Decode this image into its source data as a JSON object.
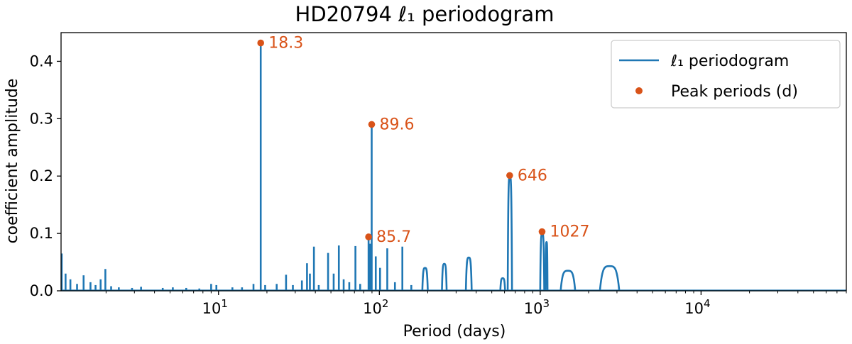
{
  "chart_data": {
    "type": "line",
    "title": "HD20794  ℓ₁ periodogram",
    "xlabel": "Period (days)",
    "ylabel": "coefficient amplitude",
    "xscale": "log",
    "xlim": [
      1.05,
      80000
    ],
    "ylim": [
      0,
      0.45
    ],
    "grid": false,
    "legend_placement": "top-right",
    "y_ticks": [
      {
        "value": 0.0,
        "label": "0.0"
      },
      {
        "value": 0.1,
        "label": "0.1"
      },
      {
        "value": 0.2,
        "label": "0.2"
      },
      {
        "value": 0.3,
        "label": "0.3"
      },
      {
        "value": 0.4,
        "label": "0.4"
      }
    ],
    "x_ticks": [
      {
        "value": 10,
        "base": "10",
        "exp": "1"
      },
      {
        "value": 100,
        "base": "10",
        "exp": "2"
      },
      {
        "value": 1000,
        "base": "10",
        "exp": "3"
      },
      {
        "value": 10000,
        "base": "10",
        "exp": "4"
      }
    ],
    "series": [
      {
        "name": "ℓ₁ periodogram",
        "color": "#1f77b4",
        "spikes": [
          [
            1.06,
            0.065
          ],
          [
            1.12,
            0.03
          ],
          [
            1.2,
            0.02
          ],
          [
            1.32,
            0.012
          ],
          [
            1.45,
            0.027
          ],
          [
            1.6,
            0.015
          ],
          [
            1.72,
            0.01
          ],
          [
            1.85,
            0.02
          ],
          [
            1.98,
            0.038
          ],
          [
            2.15,
            0.008
          ],
          [
            2.4,
            0.006
          ],
          [
            2.9,
            0.005
          ],
          [
            3.3,
            0.007
          ],
          [
            4.5,
            0.005
          ],
          [
            5.2,
            0.006
          ],
          [
            6.3,
            0.005
          ],
          [
            7.6,
            0.004
          ],
          [
            9.0,
            0.012
          ],
          [
            9.7,
            0.01
          ],
          [
            12.2,
            0.006
          ],
          [
            14.0,
            0.006
          ],
          [
            16.5,
            0.012
          ],
          [
            18.3,
            0.432
          ],
          [
            19.5,
            0.01
          ],
          [
            23.0,
            0.012
          ],
          [
            26.3,
            0.028
          ],
          [
            29.0,
            0.01
          ],
          [
            33.0,
            0.018
          ],
          [
            35.5,
            0.048
          ],
          [
            37.0,
            0.03
          ],
          [
            39.2,
            0.077
          ],
          [
            42.0,
            0.01
          ],
          [
            48.0,
            0.066
          ],
          [
            52.0,
            0.03
          ],
          [
            56.0,
            0.079
          ],
          [
            60.0,
            0.02
          ],
          [
            65.0,
            0.015
          ],
          [
            71.0,
            0.078
          ],
          [
            76.0,
            0.012
          ],
          [
            85.7,
            0.094
          ],
          [
            87.5,
            0.082
          ],
          [
            89.6,
            0.29
          ],
          [
            95.0,
            0.06
          ],
          [
            101.0,
            0.04
          ],
          [
            112.0,
            0.074
          ],
          [
            125.0,
            0.015
          ],
          [
            139.0,
            0.077
          ],
          [
            158.0,
            0.01
          ]
        ],
        "humps": [
          [
            185,
            200,
            0.04
          ],
          [
            245,
            262,
            0.047
          ],
          [
            345,
            375,
            0.058
          ],
          [
            565,
            605,
            0.022
          ],
          [
            628,
            668,
            0.2
          ],
          [
            1000,
            1060,
            0.1
          ],
          [
            1080,
            1110,
            0.085
          ],
          [
            1340,
            1650,
            0.035
          ],
          [
            2350,
            3100,
            0.043
          ]
        ]
      },
      {
        "name": "Peak periods (d)",
        "color": "#d95319",
        "points": [
          {
            "x": 18.3,
            "y": 0.432,
            "label": "18.3"
          },
          {
            "x": 89.6,
            "y": 0.29,
            "label": "89.6"
          },
          {
            "x": 85.7,
            "y": 0.094,
            "label": "85.7"
          },
          {
            "x": 646,
            "y": 0.201,
            "label": "646"
          },
          {
            "x": 1027,
            "y": 0.103,
            "label": "1027"
          }
        ]
      }
    ]
  }
}
